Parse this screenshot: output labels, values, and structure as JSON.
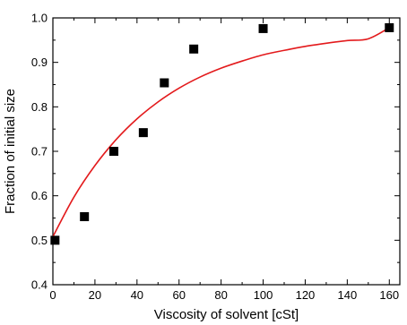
{
  "chart_data": {
    "type": "scatter",
    "xlabel": "Viscosity of solvent [cSt]",
    "ylabel": "Fraction of initial size",
    "xlim": [
      0,
      165
    ],
    "ylim": [
      0.4,
      1.0
    ],
    "x_ticks": [
      0,
      20,
      40,
      60,
      80,
      100,
      120,
      140,
      160
    ],
    "y_ticks": [
      0.4,
      0.5,
      0.6,
      0.7,
      0.8,
      0.9,
      1.0
    ],
    "x_minor_step": 10,
    "y_minor_step": 0.05,
    "grid": false,
    "series": [
      {
        "kind": "scatter",
        "marker": "square",
        "color": "#000000",
        "x": [
          1,
          15,
          29,
          43,
          53,
          67,
          100,
          160
        ],
        "y": [
          0.5,
          0.553,
          0.7,
          0.742,
          0.854,
          0.93,
          0.976,
          0.978
        ]
      },
      {
        "kind": "line",
        "color": "#e31a1c",
        "x": [
          0,
          10,
          20,
          30,
          40,
          50,
          60,
          70,
          80,
          90,
          100,
          110,
          120,
          130,
          140,
          150,
          160
        ],
        "y": [
          0.508,
          0.597,
          0.668,
          0.726,
          0.773,
          0.811,
          0.842,
          0.867,
          0.887,
          0.903,
          0.917,
          0.927,
          0.936,
          0.943,
          0.949,
          0.953,
          0.978
        ]
      }
    ]
  }
}
